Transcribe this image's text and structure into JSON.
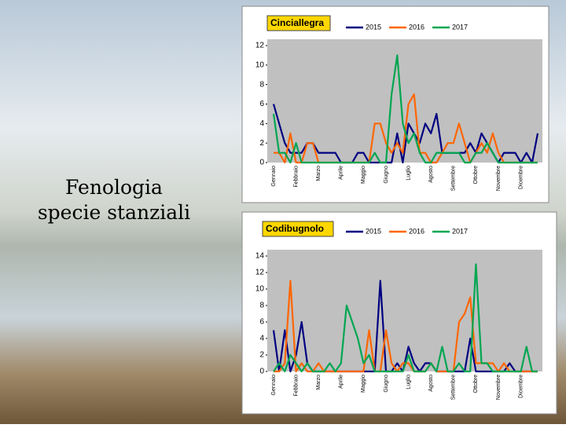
{
  "slide": {
    "title": "Fenologia specie stanziali"
  },
  "chart_data": [
    {
      "type": "line",
      "title": "Cinciallegra",
      "categories": [
        "Gennaio",
        null,
        null,
        null,
        "Febbraio",
        null,
        null,
        null,
        "Marzo",
        null,
        null,
        null,
        "Aprile",
        null,
        null,
        null,
        "Maggio",
        null,
        null,
        null,
        "Giugno",
        null,
        null,
        null,
        "Luglio",
        null,
        null,
        null,
        "Agosto",
        null,
        null,
        null,
        "Settembre",
        null,
        null,
        null,
        "Ottobre",
        null,
        null,
        null,
        "Novembre",
        null,
        null,
        null,
        "Dicembre",
        null,
        null,
        null
      ],
      "ylim": [
        0,
        12
      ],
      "yticks": [
        0,
        2,
        4,
        6,
        8,
        10,
        12
      ],
      "grid": false,
      "series": [
        {
          "name": "2015",
          "color": "#000080",
          "values": [
            6,
            4,
            2,
            1,
            1,
            1,
            2,
            2,
            1,
            1,
            1,
            1,
            0,
            0,
            0,
            1,
            1,
            0,
            0,
            0,
            0,
            0,
            3,
            0,
            4,
            3,
            2,
            4,
            3,
            5,
            1,
            1,
            1,
            1,
            1,
            2,
            1,
            3,
            2,
            1,
            0,
            1,
            1,
            1,
            0,
            1,
            0,
            3
          ]
        },
        {
          "name": "2016",
          "color": "#ff6600",
          "values": [
            1,
            1,
            0,
            3,
            0,
            0,
            2,
            2,
            0,
            0,
            0,
            0,
            0,
            0,
            0,
            0,
            0,
            0,
            4,
            4,
            2,
            1,
            2,
            1,
            6,
            7,
            1,
            1,
            0,
            0,
            1,
            2,
            2,
            4,
            2,
            0,
            1,
            2,
            1,
            3,
            1,
            0,
            0,
            0,
            0,
            0,
            0,
            0
          ]
        },
        {
          "name": "2017",
          "color": "#00a651",
          "values": [
            5,
            1,
            1,
            0,
            2,
            0,
            0,
            0,
            0,
            0,
            0,
            0,
            0,
            0,
            0,
            0,
            0,
            0,
            1,
            0,
            0,
            7,
            11,
            4,
            2,
            3,
            1,
            0,
            0,
            1,
            1,
            1,
            1,
            1,
            0,
            0,
            1,
            1,
            2,
            1,
            0,
            0,
            0,
            0,
            0,
            0,
            0,
            0
          ]
        }
      ]
    },
    {
      "type": "line",
      "title": "Codibugnolo",
      "categories": [
        "Gennaio",
        null,
        null,
        null,
        "Febbraio",
        null,
        null,
        null,
        "Marzo",
        null,
        null,
        null,
        "Aprile",
        null,
        null,
        null,
        "Maggio",
        null,
        null,
        null,
        "Giugno",
        null,
        null,
        null,
        "Luglio",
        null,
        null,
        null,
        "Agosto",
        null,
        null,
        null,
        "Settembre",
        null,
        null,
        null,
        "Ottobre",
        null,
        null,
        null,
        "Novembre",
        null,
        null,
        null,
        "Dicembre",
        null,
        null,
        null
      ],
      "ylim": [
        0,
        14
      ],
      "yticks": [
        0,
        2,
        4,
        6,
        8,
        10,
        12,
        14
      ],
      "grid": false,
      "series": [
        {
          "name": "2015",
          "color": "#000080",
          "values": [
            5,
            0,
            5,
            0,
            2,
            6,
            1,
            0,
            0,
            0,
            0,
            0,
            0,
            0,
            0,
            0,
            0,
            0,
            0,
            11,
            0,
            0,
            1,
            0,
            3,
            1,
            0,
            1,
            1,
            0,
            0,
            0,
            0,
            0,
            0,
            4,
            0,
            0,
            0,
            0,
            0,
            0,
            1,
            0,
            0,
            0,
            0,
            0
          ]
        },
        {
          "name": "2016",
          "color": "#ff6600",
          "values": [
            0,
            0,
            1,
            11,
            0,
            1,
            0,
            0,
            1,
            0,
            0,
            0,
            0,
            0,
            0,
            0,
            0,
            5,
            0,
            0,
            5,
            1,
            0,
            1,
            1,
            0,
            0,
            0,
            1,
            0,
            0,
            0,
            0,
            6,
            7,
            9,
            1,
            1,
            1,
            1,
            0,
            1,
            0,
            0,
            0,
            0,
            0,
            0
          ]
        },
        {
          "name": "2017",
          "color": "#00a651",
          "values": [
            0,
            1,
            0,
            2,
            1,
            0,
            1,
            0,
            0,
            0,
            1,
            0,
            1,
            8,
            6,
            4,
            1,
            2,
            0,
            0,
            0,
            0,
            0,
            0,
            2,
            0,
            0,
            0,
            1,
            0,
            3,
            0,
            0,
            1,
            0,
            0,
            13,
            1,
            1,
            0,
            0,
            0,
            0,
            0,
            0,
            3,
            0,
            0
          ]
        }
      ]
    }
  ]
}
